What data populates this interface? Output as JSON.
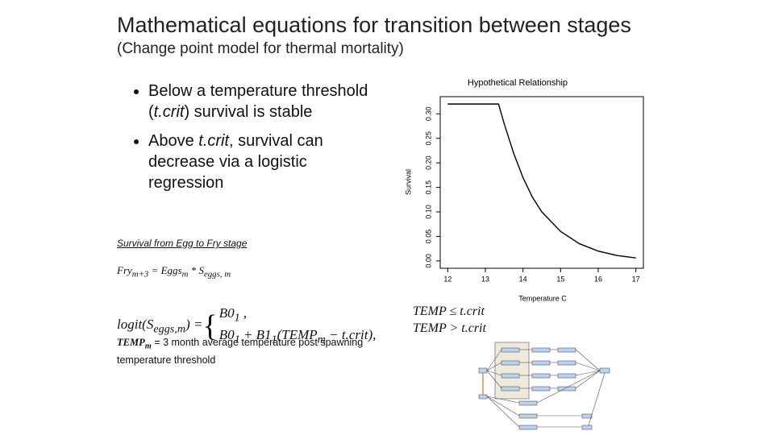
{
  "title": "Mathematical equations for transition between stages",
  "subtitle": "(Change point model for thermal mortality)",
  "bullets": [
    [
      "Below a temperature threshold (",
      "t.crit",
      ") survival is stable"
    ],
    [
      "Above ",
      "t.crit",
      ", survival can decrease via a logistic regression"
    ]
  ],
  "section_heading": "Survival from Egg to Fry stage",
  "fry_equation": [
    "Fry",
    "m+3",
    " = Eggs",
    "m",
    " * S",
    "eggs, m"
  ],
  "logit_equation": {
    "lhs": [
      "logit(S",
      "eggs,m",
      ") = "
    ],
    "case1": [
      "B0",
      "1",
      " ,"
    ],
    "case2": [
      "B0",
      "1",
      " + B1",
      "1",
      "(TEMP",
      "m",
      " − t.crit),"
    ],
    "condition1": "TEMP  ≤ t.crit",
    "condition2": "TEMP > t.crit"
  },
  "temp_definition": [
    "TEMP",
    "m",
    " = 3 month  average temperature post spawning temperature threshold"
  ],
  "chart_data": {
    "type": "line",
    "title": "Hypothetical Relationship",
    "x_label": "Temperature C",
    "y_label": "Survival",
    "x": [
      12,
      13.35,
      13.5,
      13.75,
      14,
      14.25,
      14.5,
      15,
      15.5,
      16,
      16.5,
      17
    ],
    "values": [
      0.32,
      0.32,
      0.28,
      0.22,
      0.17,
      0.13,
      0.1,
      0.06,
      0.035,
      0.02,
      0.011,
      0.006
    ],
    "color": "#000000",
    "xlim": [
      11.8,
      17.2
    ],
    "ylim": [
      -0.015,
      0.335
    ],
    "xticks": [
      12,
      13,
      14,
      15,
      16,
      17
    ],
    "yticks": [
      {
        "value": 0,
        "label": "0.00"
      },
      {
        "value": 0.05,
        "label": "0.05"
      },
      {
        "value": 0.1,
        "label": "0.10"
      },
      {
        "value": 0.15,
        "label": "0.15"
      },
      {
        "value": 0.2,
        "label": "0.20"
      },
      {
        "value": 0.25,
        "label": "0.25"
      },
      {
        "value": 0.3,
        "label": "0.30"
      }
    ]
  }
}
